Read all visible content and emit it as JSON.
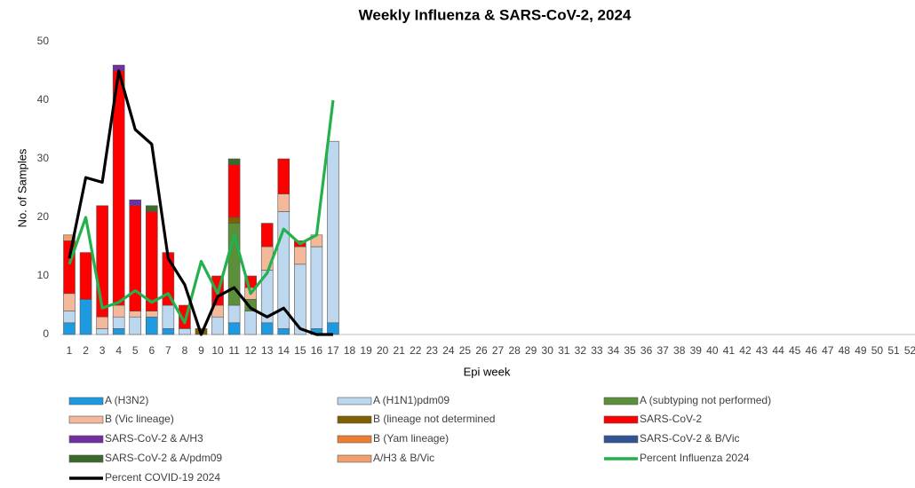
{
  "chart_data": {
    "type": "bar",
    "stacked": true,
    "title": "Weekly Influenza & SARS-CoV-2, 2024",
    "xlabel": "Epi week",
    "ylabel": "No. of Samples",
    "categories": [
      "1",
      "2",
      "3",
      "4",
      "5",
      "6",
      "7",
      "8",
      "9",
      "10",
      "11",
      "12",
      "13",
      "14",
      "15",
      "16",
      "17",
      "18",
      "19",
      "20",
      "21",
      "22",
      "23",
      "24",
      "25",
      "26",
      "27",
      "28",
      "29",
      "30",
      "31",
      "32",
      "33",
      "34",
      "35",
      "36",
      "37",
      "38",
      "39",
      "40",
      "41",
      "42",
      "43",
      "44",
      "45",
      "46",
      "47",
      "48",
      "49",
      "50",
      "51",
      "52"
    ],
    "ylim": [
      0,
      50
    ],
    "yticks": [
      0,
      10,
      20,
      30,
      40,
      50
    ],
    "grid": false,
    "legend": "bottom",
    "series": [
      {
        "name": "A (H3N2)",
        "color": "#1e9be0",
        "values": [
          2,
          6,
          null,
          1,
          null,
          3,
          1,
          null,
          null,
          null,
          2,
          null,
          2,
          1,
          null,
          1,
          2,
          null,
          null,
          null,
          null,
          null,
          null,
          null,
          null,
          null,
          null,
          null,
          null,
          null,
          null,
          null,
          null,
          null,
          null,
          null,
          null,
          null,
          null,
          null,
          null,
          null,
          null,
          null,
          null,
          null,
          null,
          null,
          null,
          null,
          null,
          null
        ]
      },
      {
        "name": "A (H1N1)pdm09",
        "color": "#bdd7ee",
        "values": [
          2,
          null,
          1,
          2,
          3,
          null,
          4,
          1,
          null,
          3,
          3,
          4,
          9,
          20,
          12,
          14,
          31,
          null,
          null,
          null,
          null,
          null,
          null,
          null,
          null,
          null,
          null,
          null,
          null,
          null,
          null,
          null,
          null,
          null,
          null,
          null,
          null,
          null,
          null,
          null,
          null,
          null,
          null,
          null,
          null,
          null,
          null,
          null,
          null,
          null,
          null,
          null
        ]
      },
      {
        "name": "A (subtyping not performed)",
        "color": "#5b8f3a",
        "values": [
          null,
          null,
          null,
          null,
          null,
          null,
          null,
          null,
          null,
          null,
          14,
          2,
          null,
          null,
          null,
          null,
          null,
          null,
          null,
          null,
          null,
          null,
          null,
          null,
          null,
          null,
          null,
          null,
          null,
          null,
          null,
          null,
          null,
          null,
          null,
          null,
          null,
          null,
          null,
          null,
          null,
          null,
          null,
          null,
          null,
          null,
          null,
          null,
          null,
          null,
          null,
          null
        ]
      },
      {
        "name": "B (Vic lineage)",
        "color": "#f4b99a",
        "values": [
          3,
          null,
          2,
          2,
          1,
          1,
          null,
          null,
          null,
          2,
          null,
          2,
          4,
          3,
          3,
          2,
          null,
          null,
          null,
          null,
          null,
          null,
          null,
          null,
          null,
          null,
          null,
          null,
          null,
          null,
          null,
          null,
          null,
          null,
          null,
          null,
          null,
          null,
          null,
          null,
          null,
          null,
          null,
          null,
          null,
          null,
          null,
          null,
          null,
          null,
          null,
          null
        ]
      },
      {
        "name": "B (lineage not determined",
        "color": "#7f6000",
        "values": [
          null,
          null,
          null,
          null,
          null,
          null,
          null,
          null,
          1,
          null,
          1,
          null,
          null,
          null,
          null,
          null,
          null,
          null,
          null,
          null,
          null,
          null,
          null,
          null,
          null,
          null,
          null,
          null,
          null,
          null,
          null,
          null,
          null,
          null,
          null,
          null,
          null,
          null,
          null,
          null,
          null,
          null,
          null,
          null,
          null,
          null,
          null,
          null,
          null,
          null,
          null,
          null
        ]
      },
      {
        "name": "SARS-CoV-2",
        "color": "#ff0000",
        "values": [
          9,
          8,
          19,
          40,
          18,
          17,
          9,
          4,
          null,
          5,
          9,
          2,
          4,
          6,
          1,
          null,
          null,
          null,
          null,
          null,
          null,
          null,
          null,
          null,
          null,
          null,
          null,
          null,
          null,
          null,
          null,
          null,
          null,
          null,
          null,
          null,
          null,
          null,
          null,
          null,
          null,
          null,
          null,
          null,
          null,
          null,
          null,
          null,
          null,
          null,
          null,
          null
        ]
      },
      {
        "name": "SARS-CoV-2 & A/H3",
        "color": "#7030a0",
        "values": [
          null,
          null,
          null,
          1,
          1,
          null,
          null,
          null,
          null,
          null,
          null,
          null,
          null,
          null,
          null,
          null,
          null,
          null,
          null,
          null,
          null,
          null,
          null,
          null,
          null,
          null,
          null,
          null,
          null,
          null,
          null,
          null,
          null,
          null,
          null,
          null,
          null,
          null,
          null,
          null,
          null,
          null,
          null,
          null,
          null,
          null,
          null,
          null,
          null,
          null,
          null,
          null
        ]
      },
      {
        "name": "B (Yam lineage)",
        "color": "#ed7d31",
        "values": [
          null,
          null,
          null,
          null,
          null,
          null,
          null,
          null,
          null,
          null,
          null,
          null,
          null,
          null,
          null,
          null,
          null,
          null,
          null,
          null,
          null,
          null,
          null,
          null,
          null,
          null,
          null,
          null,
          null,
          null,
          null,
          null,
          null,
          null,
          null,
          null,
          null,
          null,
          null,
          null,
          null,
          null,
          null,
          null,
          null,
          null,
          null,
          null,
          null,
          null,
          null,
          null
        ]
      },
      {
        "name": "SARS-CoV-2 & B/Vic",
        "color": "#2f5597",
        "values": [
          null,
          null,
          null,
          null,
          null,
          null,
          null,
          null,
          null,
          null,
          null,
          null,
          null,
          null,
          null,
          null,
          null,
          null,
          null,
          null,
          null,
          null,
          null,
          null,
          null,
          null,
          null,
          null,
          null,
          null,
          null,
          null,
          null,
          null,
          null,
          null,
          null,
          null,
          null,
          null,
          null,
          null,
          null,
          null,
          null,
          null,
          null,
          null,
          null,
          null,
          null,
          null
        ]
      },
      {
        "name": "SARS-CoV-2 & A/pdm09",
        "color": "#3b6b2a",
        "values": [
          null,
          null,
          null,
          null,
          null,
          1,
          null,
          null,
          null,
          null,
          1,
          null,
          null,
          null,
          null,
          null,
          null,
          null,
          null,
          null,
          null,
          null,
          null,
          null,
          null,
          null,
          null,
          null,
          null,
          null,
          null,
          null,
          null,
          null,
          null,
          null,
          null,
          null,
          null,
          null,
          null,
          null,
          null,
          null,
          null,
          null,
          null,
          null,
          null,
          null,
          null,
          null
        ]
      },
      {
        "name": "A/H3 & B/Vic",
        "color": "#f0a06a",
        "values": [
          1,
          null,
          null,
          null,
          null,
          null,
          null,
          null,
          null,
          null,
          null,
          null,
          null,
          null,
          null,
          null,
          null,
          null,
          null,
          null,
          null,
          null,
          null,
          null,
          null,
          null,
          null,
          null,
          null,
          null,
          null,
          null,
          null,
          null,
          null,
          null,
          null,
          null,
          null,
          null,
          null,
          null,
          null,
          null,
          null,
          null,
          null,
          null,
          null,
          null,
          null,
          null
        ]
      },
      {
        "name": "Percent Influenza 2024",
        "type": "line",
        "color": "#22b14c",
        "values": [
          12,
          20,
          4.5,
          5.5,
          7.5,
          5.5,
          7,
          2,
          12.5,
          7,
          17,
          7,
          10.5,
          18,
          15.5,
          17,
          40,
          null,
          null,
          null,
          null,
          null,
          null,
          null,
          null,
          null,
          null,
          null,
          null,
          null,
          null,
          null,
          null,
          null,
          null,
          null,
          null,
          null,
          null,
          null,
          null,
          null,
          null,
          null,
          null,
          null,
          null,
          null,
          null,
          null,
          null,
          null
        ]
      },
      {
        "name": "Percent COVID-19 2024",
        "type": "line",
        "color": "#000000",
        "values": [
          13,
          26.8,
          26,
          45,
          35,
          32.5,
          13,
          8.5,
          0,
          6.5,
          8,
          4.5,
          3,
          4.5,
          1,
          0,
          0,
          null,
          null,
          null,
          null,
          null,
          null,
          null,
          null,
          null,
          null,
          null,
          null,
          null,
          null,
          null,
          null,
          null,
          null,
          null,
          null,
          null,
          null,
          null,
          null,
          null,
          null,
          null,
          null,
          null,
          null,
          null,
          null,
          null,
          null,
          null
        ]
      }
    ]
  }
}
